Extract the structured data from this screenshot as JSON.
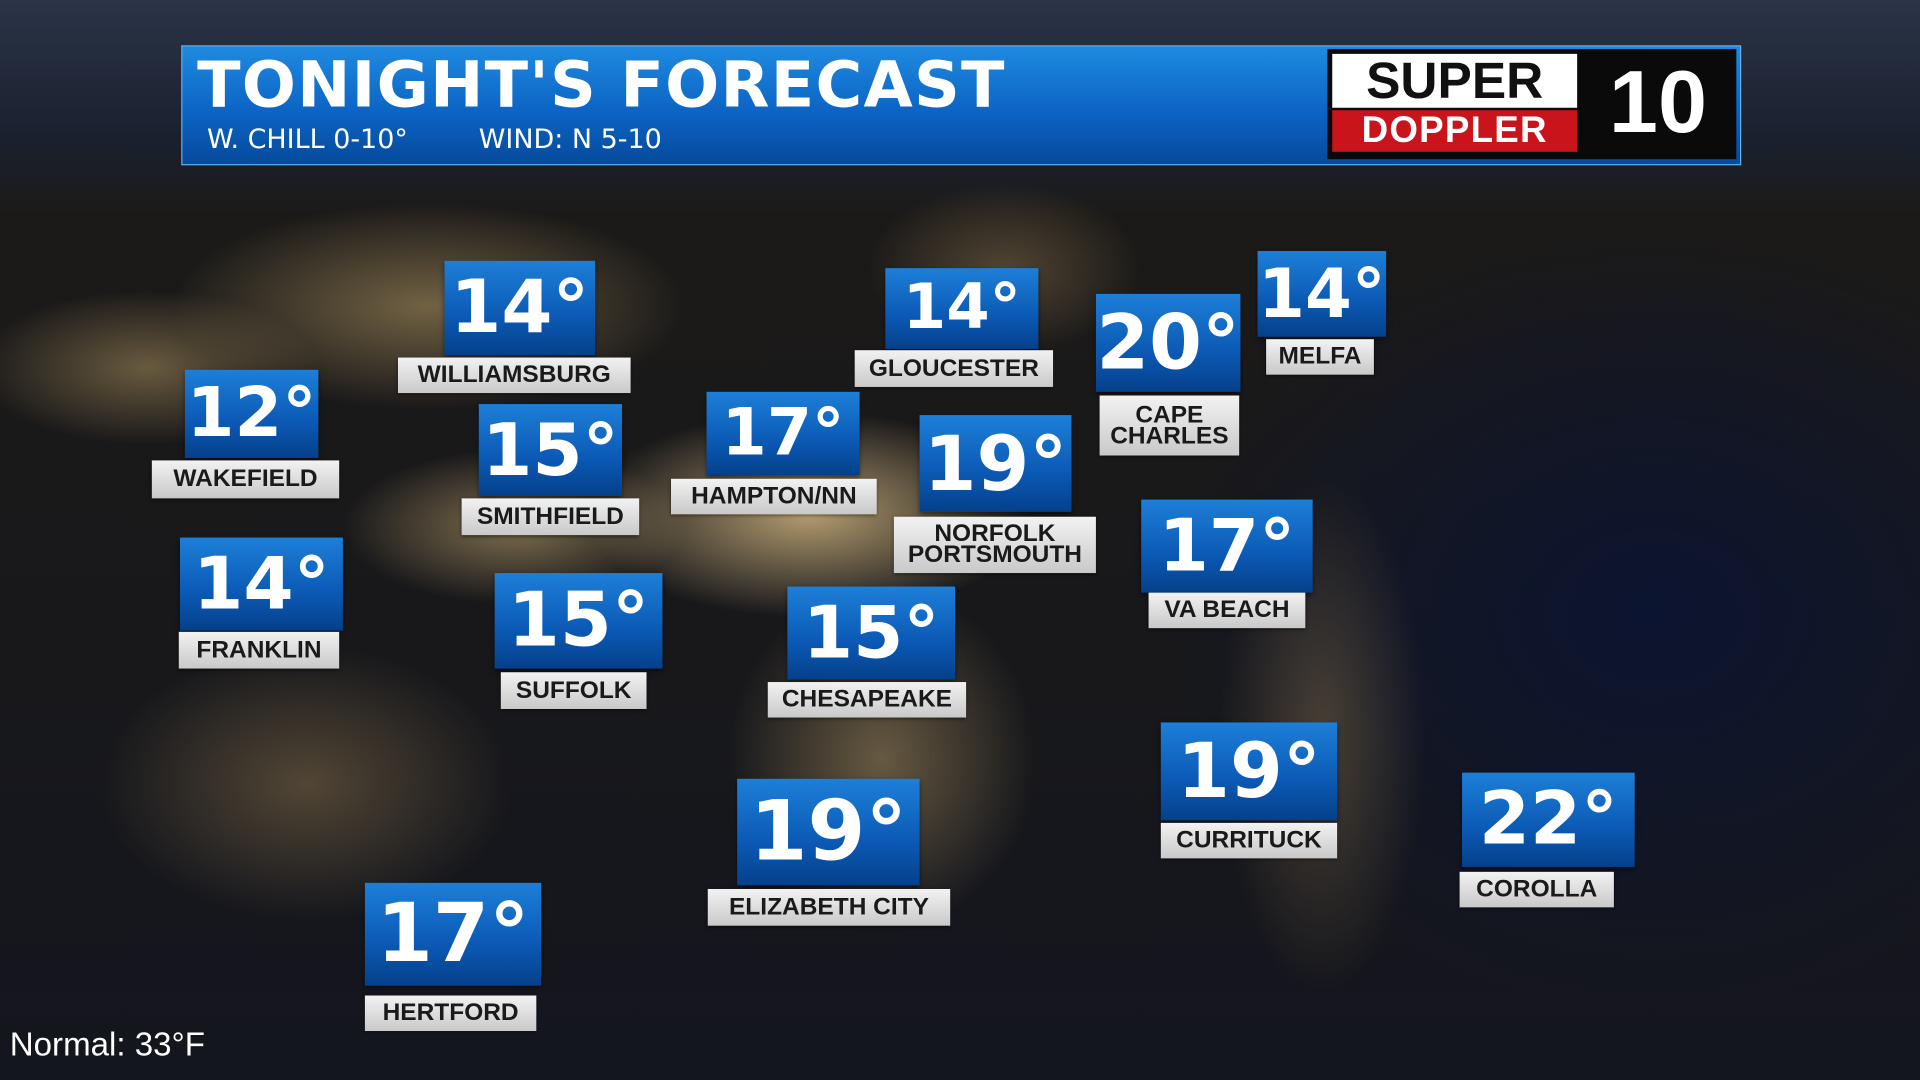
{
  "header": {
    "title": "TONIGHT'S FORECAST",
    "subtitle": [
      "W. CHILL 0-10°",
      "WIND: N 5-10"
    ]
  },
  "logo": {
    "line1": "SUPER",
    "line2": "DOPPLER",
    "channel": "10"
  },
  "cities": [
    {
      "temp": "14°",
      "name": [
        "WILLIAMSBURG"
      ]
    },
    {
      "temp": "14°",
      "name": [
        "GLOUCESTER"
      ]
    },
    {
      "temp": "20°",
      "name": [
        "CAPE",
        "CHARLES"
      ]
    },
    {
      "temp": "14°",
      "name": [
        "MELFA"
      ]
    },
    {
      "temp": "12°",
      "name": [
        "WAKEFIELD"
      ]
    },
    {
      "temp": "15°",
      "name": [
        "SMITHFIELD"
      ]
    },
    {
      "temp": "17°",
      "name": [
        "HAMPTON/NN"
      ]
    },
    {
      "temp": "19°",
      "name": [
        "NORFOLK",
        "PORTSMOUTH"
      ]
    },
    {
      "temp": "14°",
      "name": [
        "FRANKLIN"
      ]
    },
    {
      "temp": "15°",
      "name": [
        "SUFFOLK"
      ]
    },
    {
      "temp": "15°",
      "name": [
        "CHESAPEAKE"
      ]
    },
    {
      "temp": "17°",
      "name": [
        "VA BEACH"
      ]
    },
    {
      "temp": "19°",
      "name": [
        "CURRITUCK"
      ]
    },
    {
      "temp": "22°",
      "name": [
        "COROLLA"
      ]
    },
    {
      "temp": "19°",
      "name": [
        "ELIZABETH CITY"
      ]
    },
    {
      "temp": "17°",
      "name": [
        "HERTFORD"
      ]
    }
  ],
  "footer": {
    "normal": "Normal: 33°F"
  }
}
